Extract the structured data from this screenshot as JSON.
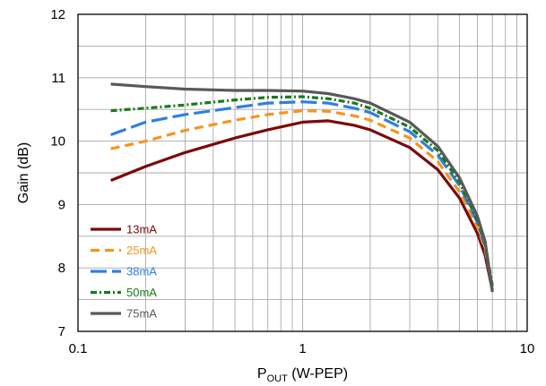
{
  "chart_data": {
    "type": "line",
    "title": "",
    "xlabel_main": "P",
    "xlabel_sub": "OUT",
    "xlabel_rest": " (W-PEP)",
    "ylabel": "Gain (dB)",
    "x_scale": "log",
    "xlim": [
      0.1,
      10
    ],
    "ylim": [
      7,
      12
    ],
    "x_ticks": [
      0.1,
      1,
      10
    ],
    "x_tick_labels": [
      "0.1",
      "1",
      "10"
    ],
    "y_ticks": [
      7,
      8,
      9,
      10,
      11,
      12
    ],
    "y_tick_labels": [
      "7",
      "8",
      "9",
      "10",
      "11",
      "12"
    ],
    "grid": true,
    "legend_position": "bottom-left",
    "series": [
      {
        "name": "13mA",
        "color": "#7b0a0a",
        "dash": "solid",
        "points": [
          [
            0.14,
            9.38
          ],
          [
            0.2,
            9.6
          ],
          [
            0.3,
            9.82
          ],
          [
            0.5,
            10.05
          ],
          [
            0.7,
            10.18
          ],
          [
            1.0,
            10.3
          ],
          [
            1.3,
            10.32
          ],
          [
            1.7,
            10.25
          ],
          [
            2.0,
            10.18
          ],
          [
            3.0,
            9.9
          ],
          [
            4.0,
            9.55
          ],
          [
            5.0,
            9.1
          ],
          [
            6.0,
            8.55
          ],
          [
            6.5,
            8.2
          ],
          [
            7.0,
            7.65
          ]
        ]
      },
      {
        "name": "25mA",
        "color": "#f7941d",
        "dash": "dash",
        "points": [
          [
            0.14,
            9.88
          ],
          [
            0.2,
            10.0
          ],
          [
            0.3,
            10.17
          ],
          [
            0.5,
            10.33
          ],
          [
            0.7,
            10.42
          ],
          [
            1.0,
            10.48
          ],
          [
            1.3,
            10.47
          ],
          [
            1.7,
            10.4
          ],
          [
            2.0,
            10.33
          ],
          [
            3.0,
            10.05
          ],
          [
            4.0,
            9.68
          ],
          [
            5.0,
            9.2
          ],
          [
            6.0,
            8.65
          ],
          [
            6.5,
            8.3
          ],
          [
            7.0,
            7.7
          ]
        ]
      },
      {
        "name": "38mA",
        "color": "#2f7fe0",
        "dash": "longdash",
        "points": [
          [
            0.14,
            10.1
          ],
          [
            0.2,
            10.3
          ],
          [
            0.3,
            10.42
          ],
          [
            0.5,
            10.53
          ],
          [
            0.7,
            10.6
          ],
          [
            1.0,
            10.62
          ],
          [
            1.3,
            10.6
          ],
          [
            1.7,
            10.52
          ],
          [
            2.0,
            10.45
          ],
          [
            3.0,
            10.15
          ],
          [
            4.0,
            9.78
          ],
          [
            5.0,
            9.3
          ],
          [
            6.0,
            8.72
          ],
          [
            6.5,
            8.35
          ],
          [
            7.0,
            7.68
          ]
        ]
      },
      {
        "name": "50mA",
        "color": "#1a7a1a",
        "dash": "dashdot",
        "points": [
          [
            0.14,
            10.48
          ],
          [
            0.2,
            10.52
          ],
          [
            0.3,
            10.57
          ],
          [
            0.5,
            10.65
          ],
          [
            0.7,
            10.69
          ],
          [
            1.0,
            10.7
          ],
          [
            1.3,
            10.67
          ],
          [
            1.7,
            10.6
          ],
          [
            2.0,
            10.52
          ],
          [
            3.0,
            10.22
          ],
          [
            4.0,
            9.85
          ],
          [
            5.0,
            9.35
          ],
          [
            6.0,
            8.75
          ],
          [
            6.5,
            8.38
          ],
          [
            7.0,
            7.72
          ]
        ]
      },
      {
        "name": "75mA",
        "color": "#595959",
        "dash": "solid",
        "points": [
          [
            0.14,
            10.9
          ],
          [
            0.2,
            10.86
          ],
          [
            0.3,
            10.82
          ],
          [
            0.5,
            10.8
          ],
          [
            0.7,
            10.8
          ],
          [
            1.0,
            10.79
          ],
          [
            1.3,
            10.75
          ],
          [
            1.7,
            10.67
          ],
          [
            2.0,
            10.6
          ],
          [
            3.0,
            10.3
          ],
          [
            4.0,
            9.92
          ],
          [
            5.0,
            9.42
          ],
          [
            6.0,
            8.82
          ],
          [
            6.5,
            8.42
          ],
          [
            7.0,
            7.62
          ]
        ]
      }
    ]
  }
}
